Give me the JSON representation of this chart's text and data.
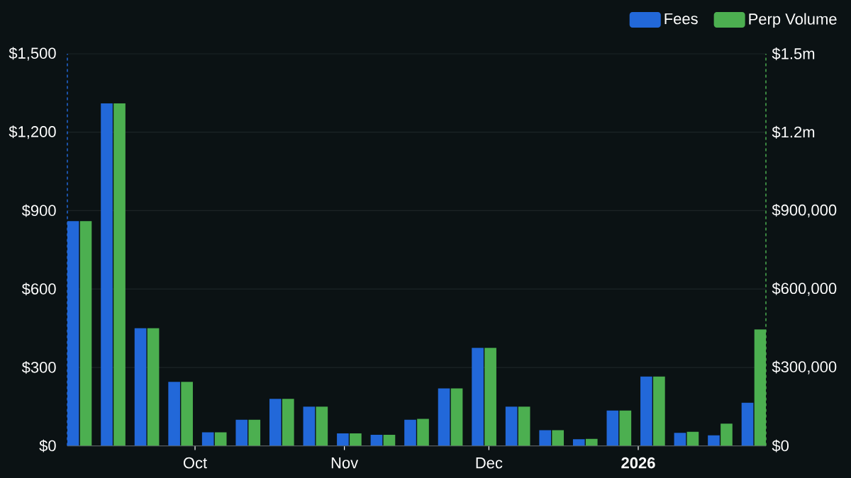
{
  "chart_data": {
    "type": "bar",
    "x": [
      "2025-09-07",
      "2025-09-14",
      "2025-09-21",
      "2025-09-28",
      "2025-10-05",
      "2025-10-12",
      "2025-10-19",
      "2025-10-26",
      "2025-11-02",
      "2025-11-09",
      "2025-11-16",
      "2025-11-23",
      "2025-11-30",
      "2025-12-07",
      "2025-12-14",
      "2025-12-21",
      "2025-12-28",
      "2026-01-04",
      "2026-01-11",
      "2026-01-18",
      "2026-01-25"
    ],
    "series": [
      {
        "name": "Fees",
        "color": "#2268d9",
        "values": [
          860,
          1310,
          450,
          245,
          52,
          100,
          180,
          150,
          48,
          42,
          100,
          220,
          375,
          150,
          60,
          25,
          135,
          265,
          50,
          40,
          165
        ]
      },
      {
        "name": "Perp Volume",
        "color": "#4caf50",
        "axis": "y2",
        "values": [
          860000,
          1310000,
          450000,
          245000,
          52000,
          100000,
          180000,
          150000,
          48000,
          42000,
          103000,
          220000,
          375000,
          150000,
          60000,
          27000,
          135000,
          265000,
          54000,
          85000,
          445000
        ]
      }
    ],
    "xlim": [
      "2025-09-04T12:00",
      "2026-01-27T12:00"
    ],
    "xticks": [
      {
        "value": "2025-10-01",
        "label": "Oct"
      },
      {
        "value": "2025-11-01",
        "label": "Nov"
      },
      {
        "value": "2025-12-01",
        "label": "Dec"
      },
      {
        "value": "2026-01-01",
        "label": "2026"
      }
    ],
    "ylim": [
      0,
      1500
    ],
    "yticks": [
      {
        "value": 0,
        "label": "$0"
      },
      {
        "value": 300,
        "label": "$300"
      },
      {
        "value": 600,
        "label": "$600"
      },
      {
        "value": 900,
        "label": "$900"
      },
      {
        "value": 1200,
        "label": "$1,200"
      },
      {
        "value": 1500,
        "label": "$1,500"
      }
    ],
    "y2lim": [
      0,
      1500000
    ],
    "y2ticks": [
      {
        "value": 0,
        "label": "$0"
      },
      {
        "value": 300000,
        "label": "$300,000"
      },
      {
        "value": 600000,
        "label": "$600,000"
      },
      {
        "value": 900000,
        "label": "$900,000"
      },
      {
        "value": 1200000,
        "label": "$1.2m"
      },
      {
        "value": 1500000,
        "label": "$1.5m"
      }
    ],
    "grid": "y",
    "legend": "top right"
  }
}
